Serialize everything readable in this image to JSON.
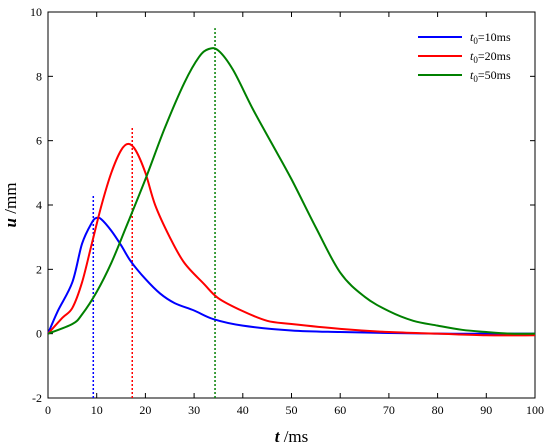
{
  "chart_data": {
    "type": "line",
    "xlabel": {
      "symbol": "t",
      "unit": " /ms"
    },
    "ylabel": {
      "symbol": "u",
      "unit": " /mm"
    },
    "xlim": [
      0,
      100
    ],
    "ylim": [
      -2,
      10
    ],
    "xticks": [
      0,
      10,
      20,
      30,
      40,
      50,
      60,
      70,
      80,
      90,
      100
    ],
    "yticks": [
      -2,
      0,
      2,
      4,
      6,
      8,
      10
    ],
    "grid": false,
    "legend_position": "top-right",
    "series": [
      {
        "name": {
          "symbol": "t",
          "sub": "0",
          "rest": "=10ms"
        },
        "color": "#0000ff",
        "x": [
          0,
          2,
          5,
          7,
          9,
          10,
          11,
          13,
          15,
          17,
          20,
          23,
          26,
          30,
          34,
          40,
          50,
          60,
          70,
          80,
          90,
          100
        ],
        "y": [
          0,
          0.7,
          1.6,
          2.8,
          3.45,
          3.6,
          3.55,
          3.2,
          2.75,
          2.25,
          1.7,
          1.25,
          0.95,
          0.72,
          0.45,
          0.25,
          0.1,
          0.05,
          0.02,
          0,
          0,
          0
        ],
        "peak_marker": {
          "x": 9.3,
          "y_top": 4.3
        }
      },
      {
        "name": {
          "symbol": "t",
          "sub": "0",
          "rest": "=20ms"
        },
        "color": "#ff0000",
        "x": [
          0,
          3,
          5,
          7,
          9,
          11,
          13,
          15,
          16.5,
          18,
          20,
          22,
          25,
          28,
          32,
          35,
          40,
          45,
          50,
          60,
          70,
          80,
          90,
          100
        ],
        "y": [
          0,
          0.5,
          0.8,
          1.6,
          2.8,
          4.0,
          5.0,
          5.7,
          5.9,
          5.7,
          5.0,
          4.0,
          3.0,
          2.2,
          1.55,
          1.1,
          0.7,
          0.4,
          0.3,
          0.15,
          0.05,
          0,
          -0.05,
          -0.05
        ],
        "peak_marker": {
          "x": 17.3,
          "y_top": 6.4
        }
      },
      {
        "name": {
          "symbol": "t",
          "sub": "0",
          "rest": "=50ms"
        },
        "color": "#008000",
        "x": [
          0,
          5,
          7,
          10,
          13,
          16,
          20,
          24,
          28,
          31,
          33,
          35,
          38,
          42,
          46,
          50,
          55,
          60,
          65,
          70,
          75,
          80,
          85,
          90,
          95,
          100
        ],
        "y": [
          0,
          0.3,
          0.6,
          1.3,
          2.2,
          3.3,
          4.8,
          6.4,
          7.8,
          8.6,
          8.85,
          8.8,
          8.2,
          7.0,
          5.9,
          4.8,
          3.3,
          1.9,
          1.15,
          0.7,
          0.4,
          0.25,
          0.12,
          0.05,
          0,
          0
        ],
        "peak_marker": {
          "x": 34.3,
          "y_top": 9.5
        }
      }
    ]
  }
}
